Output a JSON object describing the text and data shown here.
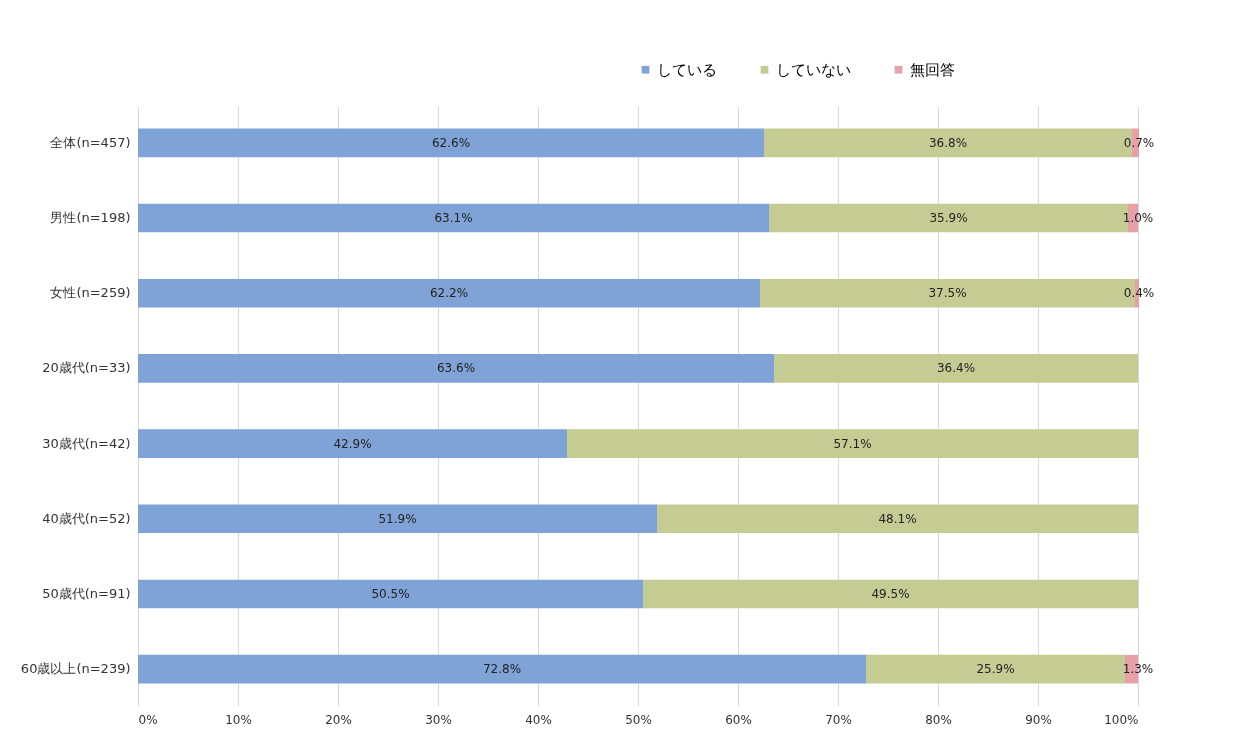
{
  "chart_data": {
    "type": "bar",
    "orientation": "horizontal",
    "stacked": true,
    "categories": [
      "全体(n=457)",
      "男性(n=198)",
      "女性(n=259)",
      "20歳代(n=33)",
      "30歳代(n=42)",
      "40歳代(n=52)",
      "50歳代(n=91)",
      "60歳以上(n=239)"
    ],
    "series": [
      {
        "name": "している",
        "color": "#7fa3d6",
        "values": [
          62.6,
          63.1,
          62.2,
          63.6,
          42.9,
          51.9,
          50.5,
          72.8
        ],
        "value_labels": [
          "62.6%",
          "63.1%",
          "62.2%",
          "63.6%",
          "42.9%",
          "51.9%",
          "50.5%",
          "72.8%"
        ]
      },
      {
        "name": "していない",
        "color": "#c4cc94",
        "values": [
          36.8,
          35.9,
          37.5,
          36.4,
          57.1,
          48.1,
          49.5,
          25.9
        ],
        "value_labels": [
          "36.8%",
          "35.9%",
          "37.5%",
          "36.4%",
          "57.1%",
          "48.1%",
          "49.5%",
          "25.9%"
        ]
      },
      {
        "name": "無回答",
        "color": "#e8a0a8",
        "values": [
          0.7,
          1.0,
          0.4,
          null,
          null,
          null,
          null,
          1.3
        ],
        "value_labels": [
          "0.7%",
          "1.0%",
          "0.4%",
          null,
          null,
          null,
          null,
          "1.3%"
        ]
      }
    ],
    "xlim": [
      0,
      100
    ],
    "xticks": [
      {
        "value": 0,
        "label": "0%"
      },
      {
        "value": 10,
        "label": "10%"
      },
      {
        "value": 20,
        "label": "20%"
      },
      {
        "value": 30,
        "label": "30%"
      },
      {
        "value": 40,
        "label": "40%"
      },
      {
        "value": 50,
        "label": "50%"
      },
      {
        "value": 60,
        "label": "60%"
      },
      {
        "value": 70,
        "label": "70%"
      },
      {
        "value": 80,
        "label": "80%"
      },
      {
        "value": 90,
        "label": "90%"
      },
      {
        "value": 100,
        "label": "100%"
      }
    ],
    "grid": "x",
    "legend": "top right"
  }
}
